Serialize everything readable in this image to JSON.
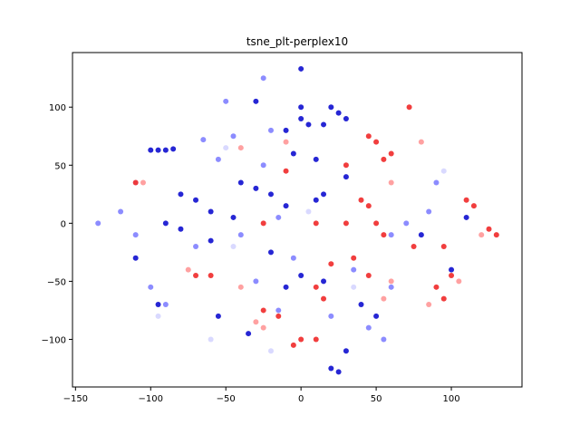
{
  "chart_data": {
    "type": "scatter",
    "title": "tsne_plt-perplex10",
    "xlim": [
      -152,
      147
    ],
    "ylim": [
      -141,
      147
    ],
    "xticks": [
      {
        "value": -150,
        "label": "−150"
      },
      {
        "value": -100,
        "label": "−100"
      },
      {
        "value": -50,
        "label": "−50"
      },
      0,
      50,
      100
    ],
    "yticks": [
      {
        "value": -100,
        "label": "−100"
      },
      {
        "value": -50,
        "label": "−50"
      },
      0,
      50,
      100
    ],
    "grid": false,
    "series": [
      {
        "color": "#0000cc",
        "x": [
          -95,
          -90,
          -85,
          -100,
          5,
          0,
          25,
          30,
          20,
          15,
          -10,
          -5,
          10,
          -40,
          -30,
          -20,
          -80,
          -70,
          -90,
          -80,
          -60,
          -20,
          0,
          15,
          -10,
          20,
          25,
          30,
          40,
          50,
          -55,
          -35,
          -60,
          -45,
          10,
          15,
          30,
          0,
          0,
          -30,
          -10,
          -110,
          100,
          80,
          110,
          -95
        ],
        "y": [
          63,
          63,
          64,
          63,
          85,
          90,
          95,
          90,
          100,
          85,
          80,
          60,
          55,
          35,
          30,
          25,
          25,
          20,
          0,
          -5,
          -15,
          -25,
          -45,
          -50,
          -55,
          -125,
          -128,
          -110,
          -70,
          -80,
          -80,
          -95,
          10,
          5,
          20,
          25,
          40,
          100,
          133,
          105,
          15,
          -30,
          -40,
          -10,
          5,
          -70
        ]
      },
      {
        "color": "#7878ff",
        "x": [
          -50,
          -65,
          -45,
          -20,
          -25,
          -55,
          -120,
          -110,
          -100,
          -90,
          60,
          45,
          55,
          -30,
          -15,
          90,
          85,
          70,
          60,
          -70,
          -40,
          35,
          -5,
          -15,
          20,
          -135,
          -25
        ],
        "y": [
          105,
          72,
          75,
          80,
          50,
          55,
          10,
          -10,
          -55,
          -70,
          -55,
          -90,
          -100,
          -50,
          -75,
          35,
          10,
          0,
          -10,
          -20,
          -10,
          -40,
          -30,
          5,
          -80,
          0,
          125
        ]
      },
      {
        "color": "#d2d2ff",
        "x": [
          -95,
          -45,
          35,
          -20,
          95,
          -110,
          5,
          -60,
          -50
        ],
        "y": [
          -80,
          -20,
          -55,
          -110,
          45,
          35,
          10,
          -100,
          65
        ]
      },
      {
        "color": "#ee1c1c",
        "x": [
          45,
          50,
          60,
          55,
          -10,
          -25,
          40,
          45,
          50,
          55,
          35,
          45,
          20,
          10,
          15,
          -25,
          -15,
          0,
          10,
          -5,
          90,
          95,
          100,
          110,
          115,
          125,
          130,
          -70,
          -60,
          75,
          95,
          72,
          -110,
          10,
          30,
          30
        ],
        "y": [
          75,
          70,
          60,
          55,
          45,
          0,
          20,
          15,
          0,
          -10,
          -30,
          -45,
          -35,
          -55,
          -65,
          -75,
          -80,
          -100,
          -100,
          -105,
          -55,
          -65,
          -45,
          20,
          15,
          -5,
          -10,
          -45,
          -45,
          -20,
          -20,
          100,
          35,
          0,
          0,
          50
        ]
      },
      {
        "color": "#ff9090",
        "x": [
          -105,
          80,
          -75,
          -40,
          -25,
          55,
          60,
          85,
          120,
          -10,
          -40,
          105,
          -30,
          60
        ],
        "y": [
          35,
          70,
          -40,
          -55,
          -90,
          -65,
          -50,
          -70,
          -10,
          70,
          65,
          -50,
          -85,
          35
        ]
      }
    ]
  }
}
